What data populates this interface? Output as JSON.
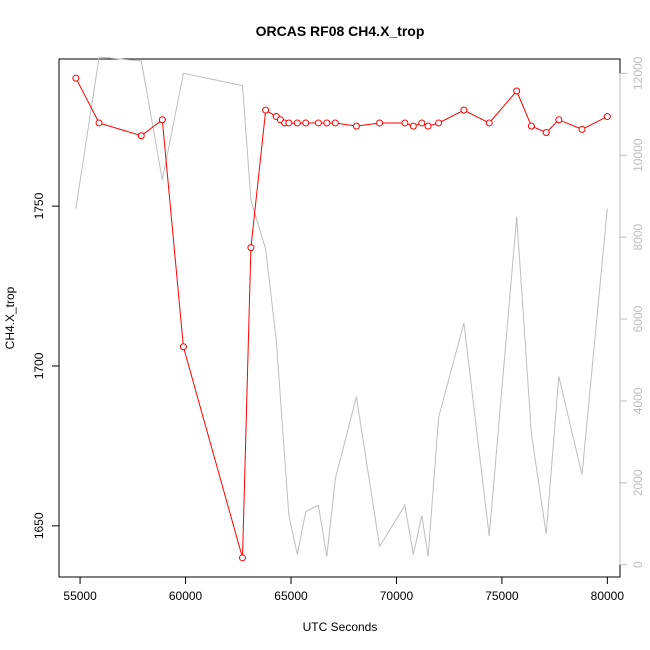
{
  "chart_data": {
    "type": "line",
    "title": "ORCAS RF08 CH4.X_trop",
    "xlabel": "UTC Seconds",
    "ylabel": "CH4.X_trop",
    "xlim": [
      54000,
      80600
    ],
    "ylim": [
      1634,
      1796
    ],
    "y2lim": [
      -300,
      12350
    ],
    "grid": false,
    "x_ticks": [
      55000,
      60000,
      65000,
      70000,
      75000,
      80000
    ],
    "y_ticks": [
      1650,
      1700,
      1750
    ],
    "y2_ticks": [
      0,
      2000,
      4000,
      6000,
      8000,
      10000,
      12000
    ],
    "series": [
      {
        "axis": "left",
        "color": "#ff0000",
        "style": "line+points",
        "points": [
          [
            54800,
            1790
          ],
          [
            55900,
            1776
          ],
          [
            57900,
            1772
          ],
          [
            58900,
            1777
          ],
          [
            59900,
            1706
          ],
          [
            62700,
            1640
          ],
          [
            63100,
            1737
          ],
          [
            63800,
            1780
          ],
          [
            64300,
            1778
          ],
          [
            64500,
            1777
          ],
          [
            64700,
            1776
          ],
          [
            64900,
            1776
          ],
          [
            65300,
            1776
          ],
          [
            65700,
            1776
          ],
          [
            66300,
            1776
          ],
          [
            66700,
            1776
          ],
          [
            67100,
            1776
          ],
          [
            68100,
            1775
          ],
          [
            69200,
            1776
          ],
          [
            70400,
            1776
          ],
          [
            70800,
            1775
          ],
          [
            71200,
            1776
          ],
          [
            71500,
            1775
          ],
          [
            72000,
            1776
          ],
          [
            73200,
            1780
          ],
          [
            74400,
            1776
          ],
          [
            75700,
            1786
          ],
          [
            76400,
            1775
          ],
          [
            77100,
            1773
          ],
          [
            77700,
            1777
          ],
          [
            78800,
            1774
          ],
          [
            80000,
            1778
          ]
        ]
      },
      {
        "axis": "right",
        "color": "#bebebe",
        "style": "line",
        "points": [
          [
            54800,
            8700
          ],
          [
            55900,
            12400
          ],
          [
            57900,
            12300
          ],
          [
            58900,
            9400
          ],
          [
            59900,
            12000
          ],
          [
            62700,
            11700
          ],
          [
            63100,
            8900
          ],
          [
            63800,
            7700
          ],
          [
            64300,
            5500
          ],
          [
            64900,
            1200
          ],
          [
            65300,
            250
          ],
          [
            65700,
            1300
          ],
          [
            66300,
            1450
          ],
          [
            66700,
            200
          ],
          [
            67100,
            2100
          ],
          [
            68100,
            4100
          ],
          [
            69200,
            450
          ],
          [
            70400,
            1450
          ],
          [
            70800,
            250
          ],
          [
            71200,
            1200
          ],
          [
            71500,
            200
          ],
          [
            72000,
            3600
          ],
          [
            73200,
            5900
          ],
          [
            74400,
            700
          ],
          [
            75700,
            8500
          ],
          [
            76400,
            3200
          ],
          [
            77100,
            750
          ],
          [
            77700,
            4600
          ],
          [
            78800,
            2200
          ],
          [
            80000,
            8700
          ]
        ]
      }
    ]
  }
}
